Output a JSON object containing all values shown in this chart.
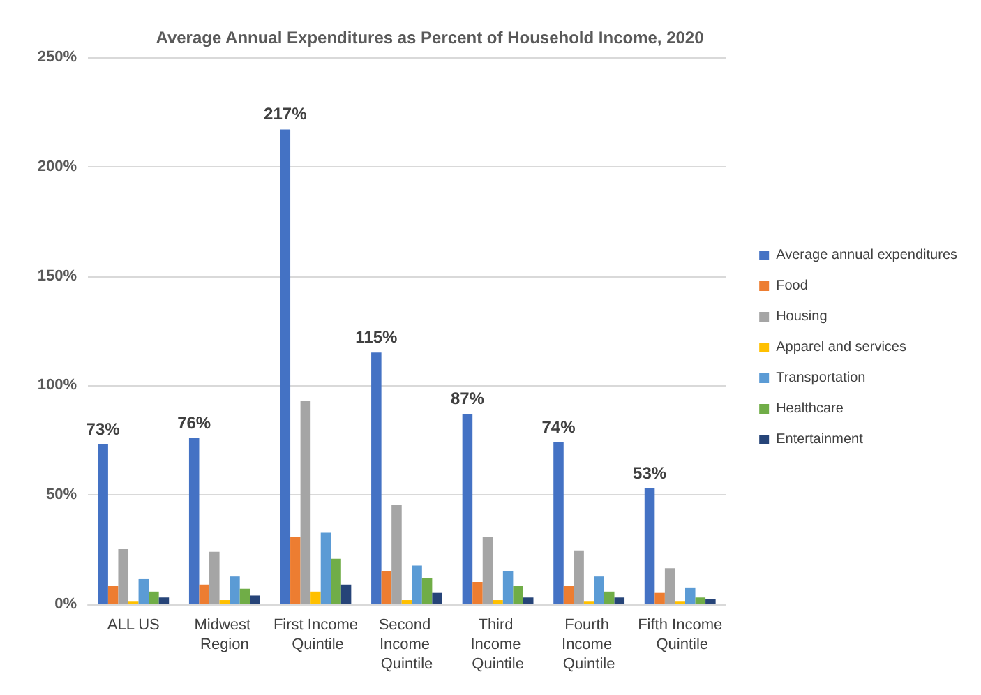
{
  "chart_data": {
    "type": "bar",
    "title": "Average Annual Expenditures as Percent of Household Income, 2020",
    "categories": [
      "ALL US",
      "Midwest Region",
      "First Income Quintile",
      "Second Income Quintile",
      "Third Income Quintile",
      "Fourth Income Quintile",
      "Fifth Income Quintile"
    ],
    "series": [
      {
        "name": "Average annual expenditures",
        "color": "#4472c4",
        "values": [
          73,
          76,
          217,
          115,
          87,
          74,
          53
        ],
        "value_labels": [
          "73%",
          "76%",
          "217%",
          "115%",
          "87%",
          "74%",
          "53%"
        ]
      },
      {
        "name": "Food",
        "color": "#ed7d31",
        "values": [
          8.3,
          9,
          30.8,
          15,
          10.2,
          8.3,
          5.2
        ]
      },
      {
        "name": "Housing",
        "color": "#a5a5a5",
        "values": [
          25.2,
          24,
          93,
          45.4,
          30.8,
          24.6,
          16.5
        ]
      },
      {
        "name": "Apparel and services",
        "color": "#ffc000",
        "values": [
          1.2,
          1.9,
          5.8,
          1.9,
          1.9,
          1.2,
          1.2
        ]
      },
      {
        "name": "Transportation",
        "color": "#5b9bd5",
        "values": [
          11.5,
          12.7,
          32.7,
          17.7,
          15,
          12.7,
          7.7
        ]
      },
      {
        "name": "Healthcare",
        "color": "#70ad47",
        "values": [
          5.8,
          7.1,
          20.8,
          12,
          8.3,
          5.8,
          3.1
        ]
      },
      {
        "name": "Entertainment",
        "color": "#264478",
        "values": [
          3.1,
          4,
          9,
          5.2,
          3.1,
          3.1,
          2.5
        ]
      }
    ],
    "ylim": [
      0,
      250
    ],
    "yticks": [
      {
        "value": 0,
        "label": "0%"
      },
      {
        "value": 50,
        "label": "50%"
      },
      {
        "value": 100,
        "label": "100%"
      },
      {
        "value": 150,
        "label": "150%"
      },
      {
        "value": 200,
        "label": "200%"
      },
      {
        "value": 250,
        "label": "250%"
      }
    ],
    "grid": "y",
    "legend": "right"
  }
}
